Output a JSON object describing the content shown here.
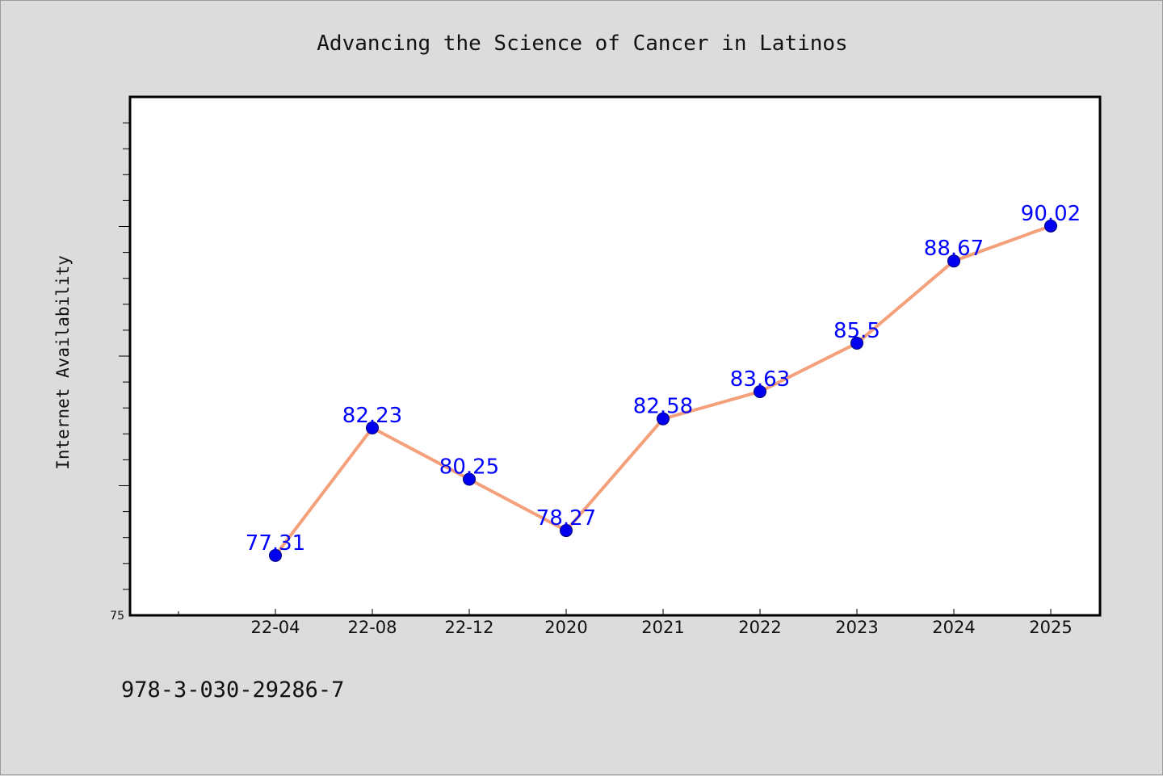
{
  "chart_data": {
    "type": "line",
    "title": "Advancing the Science of Cancer in Latinos",
    "xlabel": "",
    "ylabel": "Internet Availability",
    "categories": [
      "22-04",
      "22-08",
      "22-12",
      "2020",
      "2021",
      "2022",
      "2023",
      "2024",
      "2025"
    ],
    "series": [
      {
        "values": [
          77.31,
          82.23,
          80.25,
          78.27,
          82.58,
          83.63,
          85.5,
          88.67,
          90.02
        ],
        "labels": [
          "77.31",
          "82.23",
          "80.25",
          "78.27",
          "82.58",
          "83.63",
          "85.5",
          "88.67",
          "90.02"
        ],
        "line_color": "#f4a07a",
        "marker_color": "#0000ee"
      }
    ],
    "ylim": [
      75,
      95
    ],
    "y_tick_labels": [
      "75"
    ],
    "label_color": "#0000ff",
    "grid": false,
    "legend": "none"
  },
  "footer": {
    "isbn": "978-3-030-29286-7"
  }
}
